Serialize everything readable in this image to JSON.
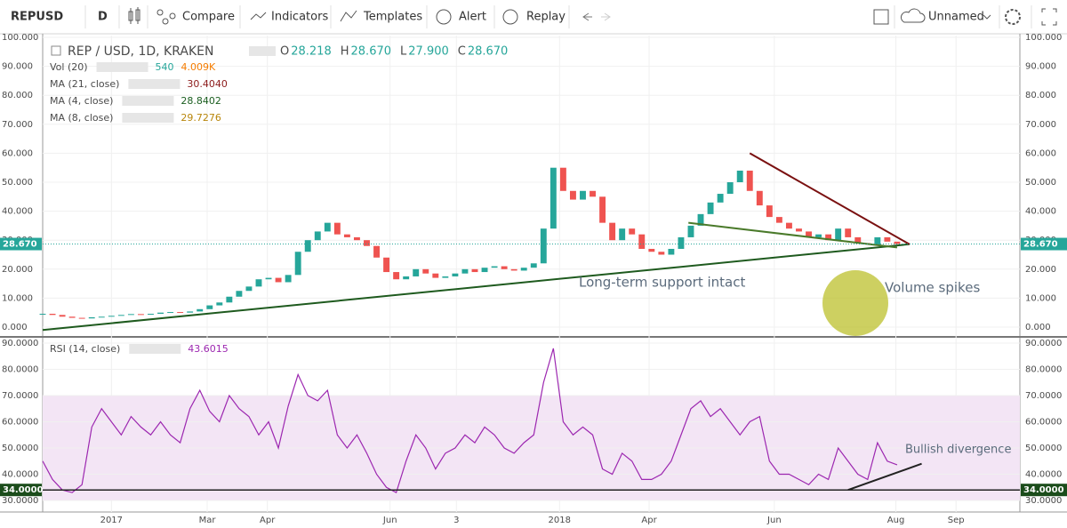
{
  "toolbar": {
    "symbol": "REPUSD",
    "interval": "D",
    "items": [
      "Compare",
      "Indicators",
      "Templates",
      "Alert",
      "Replay"
    ],
    "layout_name": "Unnamed"
  },
  "legend": {
    "title": "REP / USD, 1D, KRAKEN",
    "ohlc": [
      {
        "label": "O",
        "value": "28.218"
      },
      {
        "label": "H",
        "value": "28.670"
      },
      {
        "label": "L",
        "value": "27.900"
      },
      {
        "label": "C",
        "value": "28.670"
      }
    ],
    "indicators": [
      {
        "name": "Vol (20)",
        "values": [
          "540",
          "4.009K"
        ],
        "colors": [
          "#26a69a",
          "#f57c00"
        ]
      },
      {
        "name": "MA (21, close)",
        "values": [
          "30.4040"
        ],
        "colors": [
          "#8b1a1a"
        ]
      },
      {
        "name": "MA (4, close)",
        "values": [
          "28.8402"
        ],
        "colors": [
          "#1b5e20"
        ]
      },
      {
        "name": "MA (8, close)",
        "values": [
          "29.7276"
        ],
        "colors": [
          "#b8860b"
        ]
      }
    ],
    "rsi": {
      "name": "RSI (14, close)",
      "value": "43.6015",
      "color": "#9c27b0"
    }
  },
  "annotations": [
    "Long-term support intact",
    "Volume spikes",
    "Bullish divergence"
  ],
  "chart_data": [
    {
      "type": "candle",
      "up_color": "#26a69a",
      "down_color": "#ef5350",
      "x": [
        -56,
        -48,
        -40,
        -32,
        -24,
        -16,
        -8,
        0,
        8,
        16,
        24,
        32,
        40,
        48,
        56,
        64,
        72,
        80,
        88,
        96,
        104,
        112,
        120,
        128,
        136,
        144,
        152,
        160,
        168,
        176,
        184,
        192,
        200,
        208,
        216,
        224,
        232,
        240,
        248,
        256,
        264,
        272,
        280,
        288,
        296,
        304,
        312,
        320,
        328,
        336,
        344,
        352,
        360,
        368,
        376,
        384,
        392,
        400,
        408,
        416,
        424,
        432,
        440,
        448,
        456,
        464,
        472,
        480,
        488,
        496,
        504,
        512,
        520,
        528,
        536,
        544,
        552,
        560,
        568,
        576,
        584,
        592,
        600,
        608,
        616,
        624,
        632,
        640
      ],
      "values": [
        4.6,
        4.2,
        3.6,
        3.2,
        3.0,
        3.4,
        3.6,
        3.9,
        4.2,
        4.5,
        4.3,
        4.6,
        5.0,
        5.2,
        5.0,
        5.4,
        6.2,
        7.5,
        8.5,
        10.5,
        12.5,
        14.0,
        16.5,
        17.0,
        15.5,
        18.0,
        26.0,
        30.0,
        33.0,
        36.0,
        32.0,
        31.0,
        30.0,
        28.0,
        24.0,
        19.0,
        16.5,
        17.5,
        20.0,
        18.5,
        17.0,
        17.5,
        18.5,
        20.0,
        19.0,
        20.5,
        21.0,
        20.0,
        19.5,
        20.5,
        22.0,
        34.0,
        55.0,
        47.0,
        44.0,
        47.0,
        45.0,
        36.0,
        30.0,
        34.0,
        32.0,
        27.0,
        26.0,
        25.0,
        27.0,
        31.0,
        35.0,
        39.0,
        43.0,
        46.0,
        50.0,
        54.0,
        47.0,
        42.0,
        38.0,
        36.0,
        34.0,
        33.0,
        31.0,
        32.0,
        30.0,
        34.0,
        31.0,
        29.0,
        28.5,
        31.0,
        29.5,
        28.67
      ],
      "xlim": [
        -56,
        740
      ],
      "xticks": [
        {
          "value": 0,
          "label": "2017"
        },
        {
          "value": 78,
          "label": "Mar"
        },
        {
          "value": 127,
          "label": "Apr"
        },
        {
          "value": 227,
          "label": "Jun"
        },
        {
          "value": 281,
          "label": "3"
        },
        {
          "value": 365,
          "label": "2018"
        },
        {
          "value": 438,
          "label": "Apr"
        },
        {
          "value": 540,
          "label": "Jun"
        },
        {
          "value": 639,
          "label": "Aug"
        },
        {
          "value": 688,
          "label": "Sep"
        }
      ],
      "ylim": [
        0,
        100
      ],
      "yticks": [
        {
          "value": 0,
          "label": "0.000"
        },
        {
          "value": 10,
          "label": "10.000"
        },
        {
          "value": 20,
          "label": "20.000"
        },
        {
          "value": 30,
          "label": "30.000"
        },
        {
          "value": 40,
          "label": "40.000"
        },
        {
          "value": 50,
          "label": "50.000"
        },
        {
          "value": 60,
          "label": "60.000"
        },
        {
          "value": 70,
          "label": "70.000"
        },
        {
          "value": 80,
          "label": "80.000"
        },
        {
          "value": 90,
          "label": "90.000"
        },
        {
          "value": 100,
          "label": "100.000"
        }
      ],
      "last_price": {
        "value": 28.67,
        "label": "28.670"
      },
      "trendlines": [
        {
          "x": [
            -56,
            650
          ],
          "y": [
            -1,
            28.6
          ],
          "color": "#1e5a1e"
        },
        {
          "x": [
            520,
            650
          ],
          "y": [
            60,
            28.6
          ],
          "color": "#7a1010"
        },
        {
          "x": [
            470,
            640
          ],
          "y": [
            36,
            27.5
          ],
          "color": "#4a7a2a"
        }
      ]
    },
    {
      "type": "line",
      "color": "#9c27b0",
      "x": [
        -56,
        -48,
        -40,
        -32,
        -24,
        -16,
        -8,
        0,
        8,
        16,
        24,
        32,
        40,
        48,
        56,
        64,
        72,
        80,
        88,
        96,
        104,
        112,
        120,
        128,
        136,
        144,
        152,
        160,
        168,
        176,
        184,
        192,
        200,
        208,
        216,
        224,
        232,
        240,
        248,
        256,
        264,
        272,
        280,
        288,
        296,
        304,
        312,
        320,
        328,
        336,
        344,
        352,
        360,
        368,
        376,
        384,
        392,
        400,
        408,
        416,
        424,
        432,
        440,
        448,
        456,
        464,
        472,
        480,
        488,
        496,
        504,
        512,
        520,
        528,
        536,
        544,
        552,
        560,
        568,
        576,
        584,
        592,
        600,
        608,
        616,
        624,
        632,
        640
      ],
      "values": [
        45,
        38,
        34,
        33,
        36,
        58,
        65,
        60,
        55,
        62,
        58,
        55,
        60,
        55,
        52,
        65,
        72,
        64,
        60,
        70,
        65,
        62,
        55,
        60,
        50,
        66,
        78,
        70,
        68,
        72,
        55,
        50,
        55,
        48,
        40,
        35,
        33,
        45,
        55,
        50,
        42,
        48,
        50,
        55,
        52,
        58,
        55,
        50,
        48,
        52,
        55,
        75,
        88,
        60,
        55,
        58,
        55,
        42,
        40,
        48,
        45,
        38,
        38,
        40,
        45,
        55,
        65,
        68,
        62,
        65,
        60,
        55,
        60,
        62,
        45,
        40,
        40,
        38,
        36,
        40,
        38,
        50,
        45,
        40,
        38,
        52,
        45,
        43.6
      ],
      "xlim": [
        -56,
        740
      ],
      "ylim": [
        30,
        90
      ],
      "yticks": [
        {
          "value": 30,
          "label": "30.0000"
        },
        {
          "value": 40,
          "label": "40.0000"
        },
        {
          "value": 50,
          "label": "50.0000"
        },
        {
          "value": 60,
          "label": "60.0000"
        },
        {
          "value": 70,
          "label": "70.0000"
        },
        {
          "value": 80,
          "label": "80.0000"
        },
        {
          "value": 90,
          "label": "90.0000"
        }
      ],
      "band": [
        30,
        70
      ],
      "level": {
        "value": 34,
        "label": "34.0000"
      },
      "trendlines": [
        {
          "x": [
            600,
            660
          ],
          "y": [
            34,
            44
          ],
          "color": "#222222"
        }
      ]
    }
  ]
}
